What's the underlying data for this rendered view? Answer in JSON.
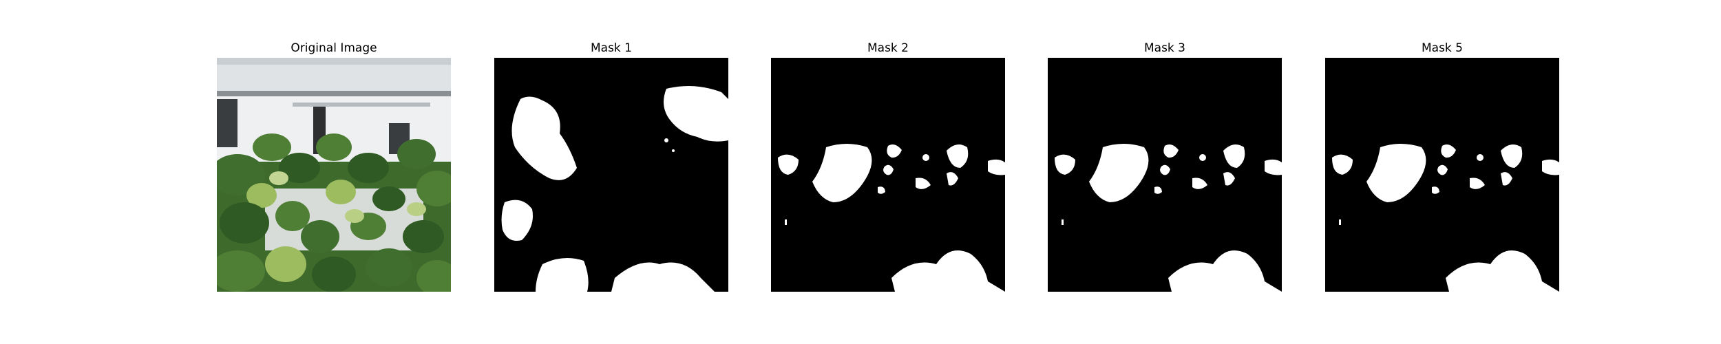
{
  "panels": [
    {
      "title": "Original Image"
    },
    {
      "title": "Mask 1"
    },
    {
      "title": "Mask 2"
    },
    {
      "title": "Mask 3"
    },
    {
      "title": "Mask 5"
    }
  ],
  "colors": {
    "mask_background": "#000000",
    "mask_foreground": "#ffffff",
    "leaf_dark": "#2f5a23",
    "leaf_mid": "#4f7f34",
    "leaf_light": "#9dbb5f",
    "sky": "#e9ecef"
  }
}
